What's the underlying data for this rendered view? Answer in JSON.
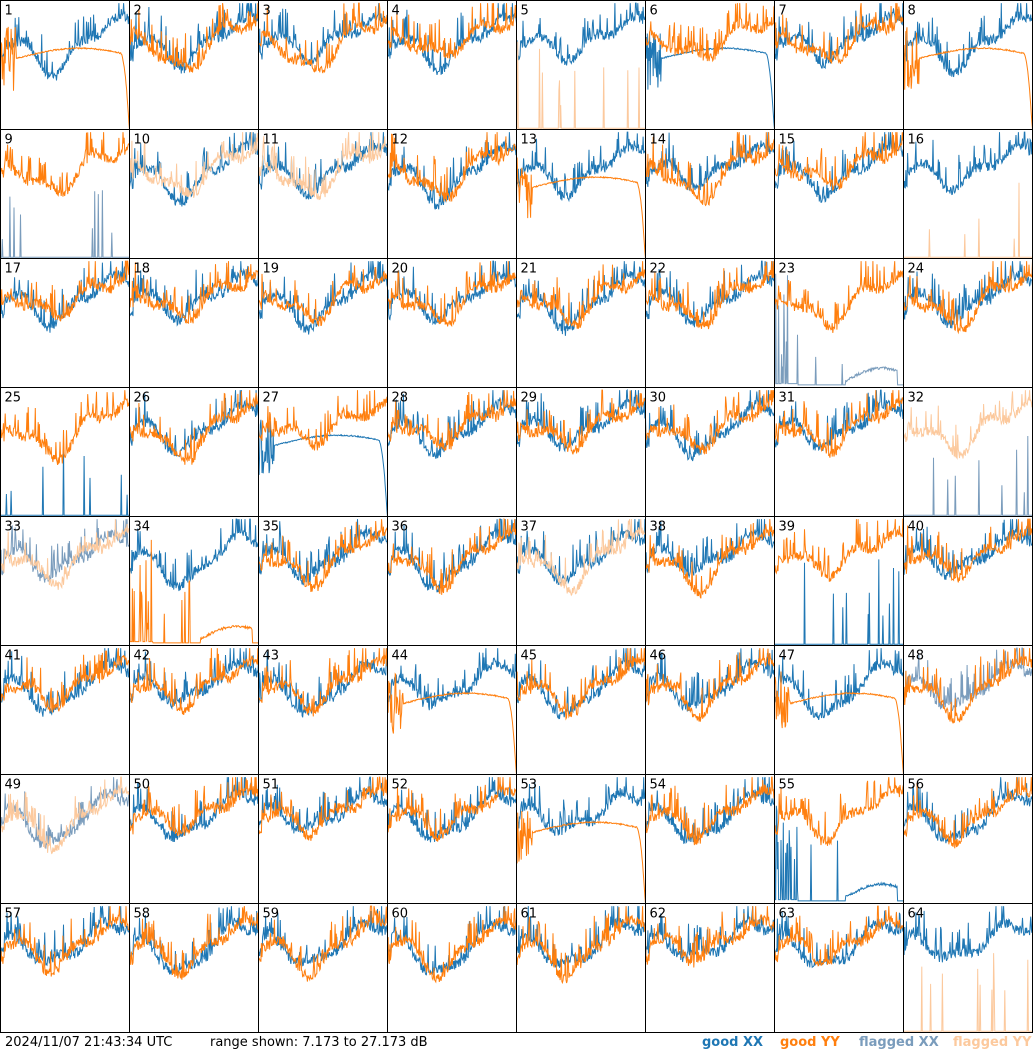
{
  "chart_data": {
    "type": "line",
    "layout": "small-multiples",
    "grid": {
      "cols": 8,
      "rows": 8
    },
    "y_range_db": [
      7.173,
      27.173
    ],
    "timestamp": "2024/11/07 21:43:34 UTC",
    "range_text": "range shown: 7.173 to 27.173 dB",
    "legend": [
      {
        "key": "good_xx",
        "prefix": "good ",
        "pol": "XX",
        "color": "#1f77b4"
      },
      {
        "key": "good_yy",
        "prefix": "good ",
        "pol": "YY",
        "color": "#ff7f0e"
      },
      {
        "key": "flagged_xx",
        "prefix": "flagged ",
        "pol": "XX",
        "color": "#7a9cbc"
      },
      {
        "key": "flagged_yy",
        "prefix": "flagged ",
        "pol": "YY",
        "color": "#fcc99d"
      }
    ],
    "colors": {
      "good_xx": "#1f77b4",
      "good_yy": "#ff7f0e",
      "flagged_xx": "#7a9cbc",
      "flagged_yy": "#fcc99d"
    },
    "panels": [
      {
        "label": "1",
        "xx": "good",
        "xx_shape": "normal",
        "yy": "good",
        "yy_shape": "rolloff"
      },
      {
        "label": "2",
        "xx": "good",
        "xx_shape": "normal",
        "yy": "good",
        "yy_shape": "normal"
      },
      {
        "label": "3",
        "xx": "good",
        "xx_shape": "normal",
        "yy": "good",
        "yy_shape": "normal"
      },
      {
        "label": "4",
        "xx": "good",
        "xx_shape": "normal",
        "yy": "good",
        "yy_shape": "normal"
      },
      {
        "label": "5",
        "xx": "good",
        "xx_shape": "normal",
        "yy": "flagged",
        "yy_shape": "spikes"
      },
      {
        "label": "6",
        "xx": "good",
        "xx_shape": "rolloff",
        "yy": "good",
        "yy_shape": "normal"
      },
      {
        "label": "7",
        "xx": "good",
        "xx_shape": "normal",
        "yy": "good",
        "yy_shape": "normal"
      },
      {
        "label": "8",
        "xx": "good",
        "xx_shape": "normal",
        "yy": "good",
        "yy_shape": "rolloff"
      },
      {
        "label": "9",
        "xx": "flagged",
        "xx_shape": "spikes",
        "yy": "good",
        "yy_shape": "normal"
      },
      {
        "label": "10",
        "xx": "good",
        "xx_shape": "normal",
        "yy": "flagged",
        "yy_shape": "normal"
      },
      {
        "label": "11",
        "xx": "good",
        "xx_shape": "normal",
        "yy": "flagged",
        "yy_shape": "normal"
      },
      {
        "label": "12",
        "xx": "good",
        "xx_shape": "normal",
        "yy": "good",
        "yy_shape": "normal"
      },
      {
        "label": "13",
        "xx": "good",
        "xx_shape": "normal",
        "yy": "good",
        "yy_shape": "rolloff"
      },
      {
        "label": "14",
        "xx": "good",
        "xx_shape": "normal",
        "yy": "good",
        "yy_shape": "normal"
      },
      {
        "label": "15",
        "xx": "good",
        "xx_shape": "normal",
        "yy": "good",
        "yy_shape": "normal"
      },
      {
        "label": "16",
        "xx": "good",
        "xx_shape": "normal",
        "yy": "flagged",
        "yy_shape": "spikes"
      },
      {
        "label": "17",
        "xx": "good",
        "xx_shape": "normal",
        "yy": "good",
        "yy_shape": "normal"
      },
      {
        "label": "18",
        "xx": "good",
        "xx_shape": "normal",
        "yy": "good",
        "yy_shape": "normal"
      },
      {
        "label": "19",
        "xx": "good",
        "xx_shape": "normal",
        "yy": "good",
        "yy_shape": "normal"
      },
      {
        "label": "20",
        "xx": "good",
        "xx_shape": "normal",
        "yy": "good",
        "yy_shape": "normal"
      },
      {
        "label": "21",
        "xx": "good",
        "xx_shape": "normal",
        "yy": "good",
        "yy_shape": "normal"
      },
      {
        "label": "22",
        "xx": "good",
        "xx_shape": "normal",
        "yy": "good",
        "yy_shape": "normal"
      },
      {
        "label": "23",
        "xx": "flagged",
        "xx_shape": "spikes_dip",
        "yy": "good",
        "yy_shape": "normal"
      },
      {
        "label": "24",
        "xx": "good",
        "xx_shape": "normal",
        "yy": "good",
        "yy_shape": "normal"
      },
      {
        "label": "25",
        "xx": "good",
        "xx_shape": "spikes",
        "yy": "good",
        "yy_shape": "normal"
      },
      {
        "label": "26",
        "xx": "good",
        "xx_shape": "normal",
        "yy": "good",
        "yy_shape": "normal"
      },
      {
        "label": "27",
        "xx": "good",
        "xx_shape": "rolloff",
        "yy": "good",
        "yy_shape": "normal"
      },
      {
        "label": "28",
        "xx": "good",
        "xx_shape": "normal",
        "yy": "good",
        "yy_shape": "normal"
      },
      {
        "label": "29",
        "xx": "good",
        "xx_shape": "normal",
        "yy": "good",
        "yy_shape": "normal"
      },
      {
        "label": "30",
        "xx": "good",
        "xx_shape": "normal",
        "yy": "good",
        "yy_shape": "normal"
      },
      {
        "label": "31",
        "xx": "good",
        "xx_shape": "normal",
        "yy": "good",
        "yy_shape": "normal"
      },
      {
        "label": "32",
        "xx": "flagged",
        "xx_shape": "spikes",
        "yy": "flagged",
        "yy_shape": "normal"
      },
      {
        "label": "33",
        "xx": "flagged",
        "xx_shape": "normal",
        "yy": "flagged",
        "yy_shape": "normal"
      },
      {
        "label": "34",
        "xx": "good",
        "xx_shape": "normal",
        "yy": "good",
        "yy_shape": "spikes_dip"
      },
      {
        "label": "35",
        "xx": "good",
        "xx_shape": "normal",
        "yy": "good",
        "yy_shape": "normal"
      },
      {
        "label": "36",
        "xx": "good",
        "xx_shape": "normal",
        "yy": "good",
        "yy_shape": "normal"
      },
      {
        "label": "37",
        "xx": "good",
        "xx_shape": "normal",
        "yy": "flagged",
        "yy_shape": "normal"
      },
      {
        "label": "38",
        "xx": "good",
        "xx_shape": "normal",
        "yy": "good",
        "yy_shape": "normal"
      },
      {
        "label": "39",
        "xx": "good",
        "xx_shape": "spikes",
        "yy": "good",
        "yy_shape": "normal"
      },
      {
        "label": "40",
        "xx": "good",
        "xx_shape": "normal",
        "yy": "good",
        "yy_shape": "normal"
      },
      {
        "label": "41",
        "xx": "good",
        "xx_shape": "normal",
        "yy": "good",
        "yy_shape": "normal"
      },
      {
        "label": "42",
        "xx": "good",
        "xx_shape": "normal",
        "yy": "good",
        "yy_shape": "normal"
      },
      {
        "label": "43",
        "xx": "good",
        "xx_shape": "normal",
        "yy": "good",
        "yy_shape": "normal"
      },
      {
        "label": "44",
        "xx": "good",
        "xx_shape": "normal",
        "yy": "good",
        "yy_shape": "rolloff"
      },
      {
        "label": "45",
        "xx": "good",
        "xx_shape": "normal",
        "yy": "good",
        "yy_shape": "normal"
      },
      {
        "label": "46",
        "xx": "good",
        "xx_shape": "normal",
        "yy": "good",
        "yy_shape": "normal"
      },
      {
        "label": "47",
        "xx": "good",
        "xx_shape": "normal",
        "yy": "good",
        "yy_shape": "rolloff"
      },
      {
        "label": "48",
        "xx": "flagged",
        "xx_shape": "normal",
        "yy": "good",
        "yy_shape": "normal"
      },
      {
        "label": "49",
        "xx": "flagged",
        "xx_shape": "normal",
        "yy": "flagged",
        "yy_shape": "normal"
      },
      {
        "label": "50",
        "xx": "good",
        "xx_shape": "normal",
        "yy": "good",
        "yy_shape": "normal"
      },
      {
        "label": "51",
        "xx": "good",
        "xx_shape": "normal",
        "yy": "good",
        "yy_shape": "normal"
      },
      {
        "label": "52",
        "xx": "good",
        "xx_shape": "normal",
        "yy": "good",
        "yy_shape": "normal"
      },
      {
        "label": "53",
        "xx": "good",
        "xx_shape": "normal",
        "yy": "good",
        "yy_shape": "rolloff"
      },
      {
        "label": "54",
        "xx": "good",
        "xx_shape": "normal",
        "yy": "good",
        "yy_shape": "normal"
      },
      {
        "label": "55",
        "xx": "good",
        "xx_shape": "spikes_dip",
        "yy": "good",
        "yy_shape": "normal"
      },
      {
        "label": "56",
        "xx": "good",
        "xx_shape": "normal",
        "yy": "good",
        "yy_shape": "normal"
      },
      {
        "label": "57",
        "xx": "good",
        "xx_shape": "normal",
        "yy": "good",
        "yy_shape": "normal"
      },
      {
        "label": "58",
        "xx": "good",
        "xx_shape": "normal",
        "yy": "good",
        "yy_shape": "normal"
      },
      {
        "label": "59",
        "xx": "good",
        "xx_shape": "normal",
        "yy": "good",
        "yy_shape": "normal"
      },
      {
        "label": "60",
        "xx": "good",
        "xx_shape": "normal",
        "yy": "good",
        "yy_shape": "normal"
      },
      {
        "label": "61",
        "xx": "good",
        "xx_shape": "normal",
        "yy": "good",
        "yy_shape": "normal"
      },
      {
        "label": "62",
        "xx": "good",
        "xx_shape": "normal",
        "yy": "good",
        "yy_shape": "normal"
      },
      {
        "label": "63",
        "xx": "good",
        "xx_shape": "normal",
        "yy": "good",
        "yy_shape": "normal"
      },
      {
        "label": "64",
        "xx": "good",
        "xx_shape": "normal",
        "yy": "flagged",
        "yy_shape": "spikes"
      }
    ]
  }
}
